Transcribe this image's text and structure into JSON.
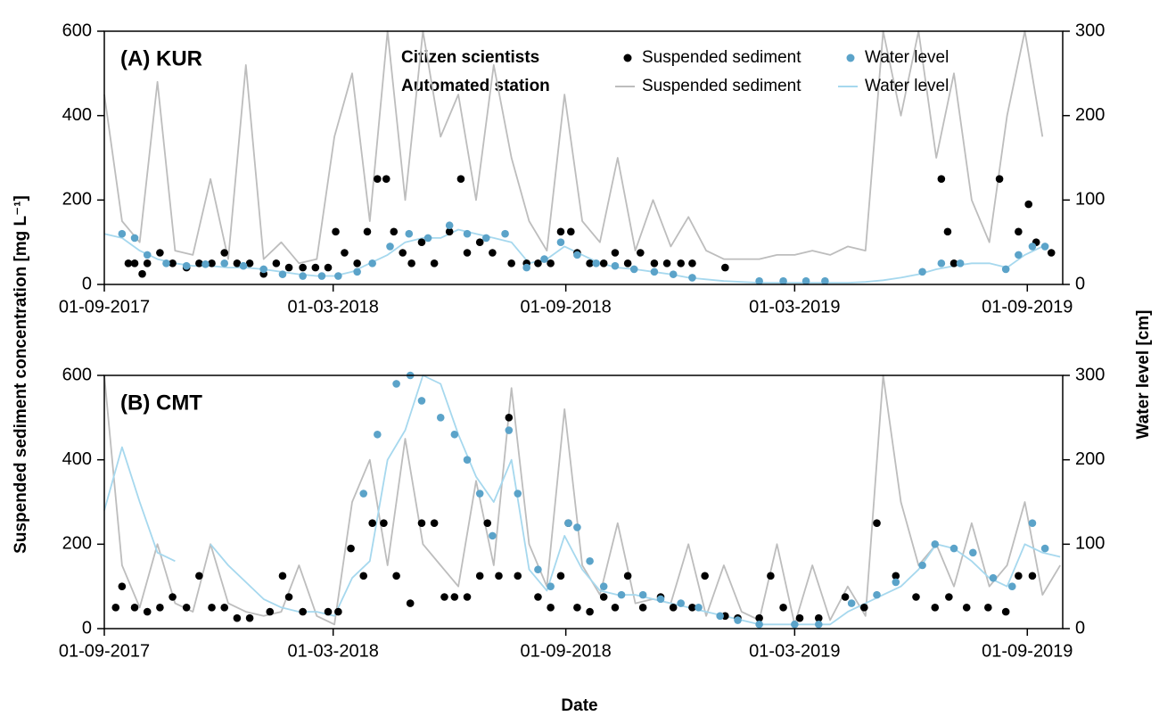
{
  "axis_labels": {
    "y": "Suspended sediment concentration [mg L⁻¹]",
    "y2": "Water level [cm]",
    "x": "Date"
  },
  "legend": {
    "rows": [
      "Citizen scientists",
      "Automated station"
    ]
  },
  "chart_data": [
    {
      "type": "line",
      "title": "(A) KUR",
      "xlim": [
        "2017-09-01",
        "2019-09-29"
      ],
      "xticks": [
        {
          "value": "2017-09-01",
          "label": "01-09-2017"
        },
        {
          "value": "2018-03-01",
          "label": "01-03-2018"
        },
        {
          "value": "2018-09-01",
          "label": "01-09-2018"
        },
        {
          "value": "2019-03-01",
          "label": "01-03-2019"
        },
        {
          "value": "2019-09-01",
          "label": "01-09-2019"
        }
      ],
      "ylim": [
        0,
        600
      ],
      "yticks": [
        0,
        200,
        400,
        600
      ],
      "y2lim": [
        0,
        300
      ],
      "y2ticks": [
        0,
        100,
        200,
        300
      ],
      "x": [
        "2017-09-01",
        "2017-09-15",
        "2017-09-29",
        "2017-10-13",
        "2017-10-27",
        "2017-11-10",
        "2017-11-24",
        "2017-12-08",
        "2017-12-22",
        "2018-01-05",
        "2018-01-19",
        "2018-02-02",
        "2018-02-16",
        "2018-03-02",
        "2018-03-16",
        "2018-03-30",
        "2018-04-13",
        "2018-04-27",
        "2018-05-11",
        "2018-05-25",
        "2018-06-08",
        "2018-06-22",
        "2018-07-06",
        "2018-07-20",
        "2018-08-03",
        "2018-08-17",
        "2018-08-31",
        "2018-09-14",
        "2018-09-28",
        "2018-10-12",
        "2018-10-26",
        "2018-11-09",
        "2018-11-23",
        "2018-12-07",
        "2018-12-21",
        "2019-01-04",
        "2019-01-18",
        "2019-02-01",
        "2019-02-15",
        "2019-03-01",
        "2019-03-15",
        "2019-03-29",
        "2019-04-12",
        "2019-04-26",
        "2019-05-10",
        "2019-05-24",
        "2019-06-07",
        "2019-06-21",
        "2019-07-05",
        "2019-07-19",
        "2019-08-02",
        "2019-08-16",
        "2019-08-30",
        "2019-09-13",
        "2019-09-27"
      ],
      "series": [
        {
          "name": "Suspended sediment",
          "type": "scatter",
          "color": "#000000",
          "axis": "y",
          "x": [
            "2017-09-20",
            "2017-09-25",
            "2017-10-01",
            "2017-10-05",
            "2017-10-15",
            "2017-10-25",
            "2017-11-05",
            "2017-11-15",
            "2017-11-25",
            "2017-12-05",
            "2017-12-15",
            "2017-12-25",
            "2018-01-05",
            "2018-01-15",
            "2018-01-25",
            "2018-02-05",
            "2018-02-15",
            "2018-02-25",
            "2018-03-03",
            "2018-03-10",
            "2018-03-20",
            "2018-03-28",
            "2018-04-05",
            "2018-04-12",
            "2018-04-18",
            "2018-04-25",
            "2018-05-02",
            "2018-05-10",
            "2018-05-20",
            "2018-06-01",
            "2018-06-10",
            "2018-06-15",
            "2018-06-25",
            "2018-07-05",
            "2018-07-20",
            "2018-08-01",
            "2018-08-10",
            "2018-08-20",
            "2018-08-28",
            "2018-09-05",
            "2018-09-10",
            "2018-09-20",
            "2018-10-01",
            "2018-10-10",
            "2018-10-20",
            "2018-10-30",
            "2018-11-10",
            "2018-11-20",
            "2018-12-01",
            "2018-12-10",
            "2019-01-05",
            "2019-06-25",
            "2019-06-30",
            "2019-07-05",
            "2019-08-10",
            "2019-08-25",
            "2019-09-02",
            "2019-09-08",
            "2019-09-20"
          ],
          "values": [
            50,
            50,
            25,
            50,
            75,
            50,
            40,
            50,
            50,
            75,
            50,
            50,
            25,
            50,
            40,
            40,
            40,
            40,
            125,
            75,
            50,
            125,
            250,
            250,
            125,
            75,
            50,
            100,
            50,
            125,
            250,
            75,
            100,
            75,
            50,
            50,
            50,
            50,
            125,
            125,
            75,
            50,
            50,
            75,
            50,
            75,
            50,
            50,
            50,
            50,
            40,
            250,
            125,
            50,
            250,
            125,
            190,
            100,
            75
          ]
        },
        {
          "name": "Water level",
          "type": "scatter",
          "color": "#5ba3c9",
          "axis": "y2",
          "x": [
            "2017-09-15",
            "2017-09-25",
            "2017-10-05",
            "2017-10-20",
            "2017-11-05",
            "2017-11-20",
            "2017-12-05",
            "2017-12-20",
            "2018-01-05",
            "2018-01-20",
            "2018-02-05",
            "2018-02-20",
            "2018-03-05",
            "2018-03-20",
            "2018-04-01",
            "2018-04-15",
            "2018-04-30",
            "2018-05-15",
            "2018-06-01",
            "2018-06-15",
            "2018-06-30",
            "2018-07-15",
            "2018-08-01",
            "2018-08-15",
            "2018-08-28",
            "2018-09-10",
            "2018-09-25",
            "2018-10-10",
            "2018-10-25",
            "2018-11-10",
            "2018-11-25",
            "2018-12-10",
            "2019-02-01",
            "2019-02-20",
            "2019-03-10",
            "2019-03-25",
            "2019-06-10",
            "2019-06-25",
            "2019-07-10",
            "2019-08-15",
            "2019-08-25",
            "2019-09-05",
            "2019-09-15"
          ],
          "values": [
            60,
            55,
            35,
            25,
            22,
            24,
            25,
            22,
            18,
            12,
            10,
            10,
            10,
            15,
            25,
            45,
            60,
            55,
            70,
            60,
            55,
            60,
            20,
            30,
            50,
            35,
            25,
            22,
            18,
            15,
            12,
            8,
            4,
            4,
            4,
            4,
            15,
            25,
            25,
            18,
            35,
            45,
            45
          ]
        },
        {
          "name": "Suspended sediment",
          "type": "line",
          "color": "#bdbdbd",
          "axis": "y",
          "values": [
            450,
            150,
            100,
            480,
            80,
            70,
            250,
            60,
            520,
            60,
            100,
            50,
            60,
            350,
            500,
            150,
            600,
            200,
            600,
            350,
            450,
            200,
            520,
            300,
            150,
            80,
            450,
            150,
            100,
            300,
            80,
            200,
            90,
            160,
            80,
            60,
            60,
            60,
            70,
            70,
            80,
            70,
            90,
            80,
            600,
            400,
            600,
            300,
            500,
            200,
            100,
            400,
            600,
            350,
            null
          ]
        },
        {
          "name": "Water level",
          "type": "line",
          "color": "#a6d8ee",
          "axis": "y2",
          "values": [
            60,
            55,
            40,
            30,
            25,
            22,
            22,
            20,
            20,
            18,
            15,
            12,
            10,
            10,
            15,
            25,
            35,
            50,
            55,
            55,
            65,
            60,
            55,
            50,
            25,
            30,
            45,
            35,
            25,
            20,
            18,
            15,
            12,
            8,
            6,
            4,
            3,
            2,
            2,
            2,
            2,
            2,
            2,
            3,
            5,
            8,
            12,
            18,
            22,
            25,
            25,
            20,
            35,
            45,
            null
          ]
        }
      ]
    },
    {
      "type": "line",
      "title": "(B) CMT",
      "xlim": [
        "2017-09-01",
        "2019-09-29"
      ],
      "xticks": [
        {
          "value": "2017-09-01",
          "label": "01-09-2017"
        },
        {
          "value": "2018-03-01",
          "label": "01-03-2018"
        },
        {
          "value": "2018-09-01",
          "label": "01-09-2018"
        },
        {
          "value": "2019-03-01",
          "label": "01-03-2019"
        },
        {
          "value": "2019-09-01",
          "label": "01-09-2019"
        }
      ],
      "ylim": [
        0,
        600
      ],
      "yticks": [
        0,
        200,
        400,
        600
      ],
      "y2lim": [
        0,
        300
      ],
      "y2ticks": [
        0,
        100,
        200,
        300
      ],
      "x": [
        "2017-09-01",
        "2017-09-15",
        "2017-09-29",
        "2017-10-13",
        "2017-10-27",
        "2017-11-10",
        "2017-11-24",
        "2017-12-08",
        "2017-12-22",
        "2018-01-05",
        "2018-01-19",
        "2018-02-02",
        "2018-02-16",
        "2018-03-02",
        "2018-03-16",
        "2018-03-30",
        "2018-04-13",
        "2018-04-27",
        "2018-05-11",
        "2018-05-25",
        "2018-06-08",
        "2018-06-22",
        "2018-07-06",
        "2018-07-20",
        "2018-08-03",
        "2018-08-17",
        "2018-08-31",
        "2018-09-14",
        "2018-09-28",
        "2018-10-12",
        "2018-10-26",
        "2018-11-09",
        "2018-11-23",
        "2018-12-07",
        "2018-12-21",
        "2019-01-04",
        "2019-01-18",
        "2019-02-01",
        "2019-02-15",
        "2019-03-01",
        "2019-03-15",
        "2019-03-29",
        "2019-04-12",
        "2019-04-26",
        "2019-05-10",
        "2019-05-24",
        "2019-06-07",
        "2019-06-21",
        "2019-07-05",
        "2019-07-19",
        "2019-08-02",
        "2019-08-16",
        "2019-08-30",
        "2019-09-13",
        "2019-09-27"
      ],
      "series": [
        {
          "name": "Suspended sediment",
          "type": "scatter",
          "color": "#000000",
          "axis": "y",
          "x": [
            "2017-09-10",
            "2017-09-15",
            "2017-09-25",
            "2017-10-05",
            "2017-10-15",
            "2017-10-25",
            "2017-11-05",
            "2017-11-15",
            "2017-11-25",
            "2017-12-05",
            "2017-12-15",
            "2017-12-25",
            "2018-01-10",
            "2018-01-20",
            "2018-01-25",
            "2018-02-05",
            "2018-02-25",
            "2018-03-05",
            "2018-03-15",
            "2018-03-25",
            "2018-04-01",
            "2018-04-10",
            "2018-04-20",
            "2018-05-01",
            "2018-05-10",
            "2018-05-20",
            "2018-05-28",
            "2018-06-05",
            "2018-06-15",
            "2018-06-25",
            "2018-07-01",
            "2018-07-10",
            "2018-07-18",
            "2018-07-25",
            "2018-08-10",
            "2018-08-20",
            "2018-08-28",
            "2018-09-03",
            "2018-09-10",
            "2018-09-20",
            "2018-10-01",
            "2018-10-10",
            "2018-10-20",
            "2018-11-01",
            "2018-11-15",
            "2018-11-25",
            "2018-12-10",
            "2018-12-20",
            "2019-01-05",
            "2019-01-15",
            "2019-02-01",
            "2019-02-10",
            "2019-02-20",
            "2019-03-05",
            "2019-03-20",
            "2019-04-10",
            "2019-04-25",
            "2019-05-05",
            "2019-05-20",
            "2019-06-05",
            "2019-06-20",
            "2019-07-01",
            "2019-07-15",
            "2019-08-01",
            "2019-08-15",
            "2019-08-25",
            "2019-09-05"
          ],
          "values": [
            50,
            100,
            50,
            40,
            50,
            75,
            50,
            125,
            50,
            50,
            25,
            25,
            40,
            125,
            75,
            40,
            40,
            40,
            190,
            125,
            250,
            250,
            125,
            60,
            250,
            250,
            75,
            75,
            75,
            125,
            250,
            125,
            500,
            125,
            75,
            50,
            125,
            250,
            50,
            40,
            75,
            50,
            125,
            50,
            75,
            50,
            50,
            125,
            30,
            25,
            25,
            125,
            50,
            25,
            25,
            75,
            50,
            250,
            125,
            75,
            50,
            75,
            50,
            50,
            40,
            125,
            125
          ]
        },
        {
          "name": "Water level",
          "type": "scatter",
          "color": "#5ba3c9",
          "axis": "y2",
          "x": [
            "2018-03-25",
            "2018-04-05",
            "2018-04-20",
            "2018-05-01",
            "2018-05-10",
            "2018-05-25",
            "2018-06-05",
            "2018-06-15",
            "2018-06-25",
            "2018-07-05",
            "2018-07-18",
            "2018-07-25",
            "2018-08-10",
            "2018-08-20",
            "2018-09-03",
            "2018-09-10",
            "2018-09-20",
            "2018-10-01",
            "2018-10-15",
            "2018-11-01",
            "2018-11-15",
            "2018-12-01",
            "2018-12-15",
            "2019-01-01",
            "2019-01-15",
            "2019-02-01",
            "2019-03-01",
            "2019-03-20",
            "2019-04-15",
            "2019-05-05",
            "2019-05-20",
            "2019-06-10",
            "2019-06-20",
            "2019-07-05",
            "2019-07-20",
            "2019-08-05",
            "2019-08-20",
            "2019-09-05",
            "2019-09-15"
          ],
          "values": [
            160,
            230,
            290,
            300,
            270,
            250,
            230,
            200,
            160,
            110,
            235,
            160,
            70,
            50,
            125,
            120,
            80,
            50,
            40,
            40,
            35,
            30,
            25,
            15,
            10,
            5,
            5,
            5,
            30,
            40,
            55,
            75,
            100,
            95,
            90,
            60,
            50,
            125,
            95
          ]
        },
        {
          "name": "Suspended sediment",
          "type": "line",
          "color": "#bdbdbd",
          "axis": "y",
          "values": [
            600,
            150,
            50,
            200,
            60,
            40,
            200,
            60,
            40,
            30,
            40,
            150,
            30,
            10,
            300,
            400,
            150,
            450,
            200,
            150,
            100,
            350,
            150,
            570,
            200,
            100,
            520,
            150,
            80,
            250,
            60,
            70,
            60,
            200,
            30,
            150,
            40,
            20,
            200,
            10,
            150,
            20,
            100,
            30,
            600,
            300,
            150,
            200,
            100,
            250,
            100,
            150,
            300,
            80,
            150
          ]
        },
        {
          "name": "Water level",
          "type": "line",
          "color": "#a6d8ee",
          "axis": "y2",
          "values": [
            140,
            215,
            150,
            90,
            80,
            null,
            100,
            75,
            55,
            35,
            25,
            20,
            20,
            15,
            60,
            80,
            200,
            235,
            300,
            290,
            230,
            180,
            150,
            200,
            70,
            45,
            110,
            70,
            45,
            40,
            40,
            35,
            30,
            25,
            20,
            15,
            10,
            5,
            5,
            5,
            5,
            5,
            20,
            30,
            40,
            50,
            70,
            100,
            95,
            80,
            60,
            50,
            100,
            90,
            85
          ]
        }
      ]
    }
  ]
}
